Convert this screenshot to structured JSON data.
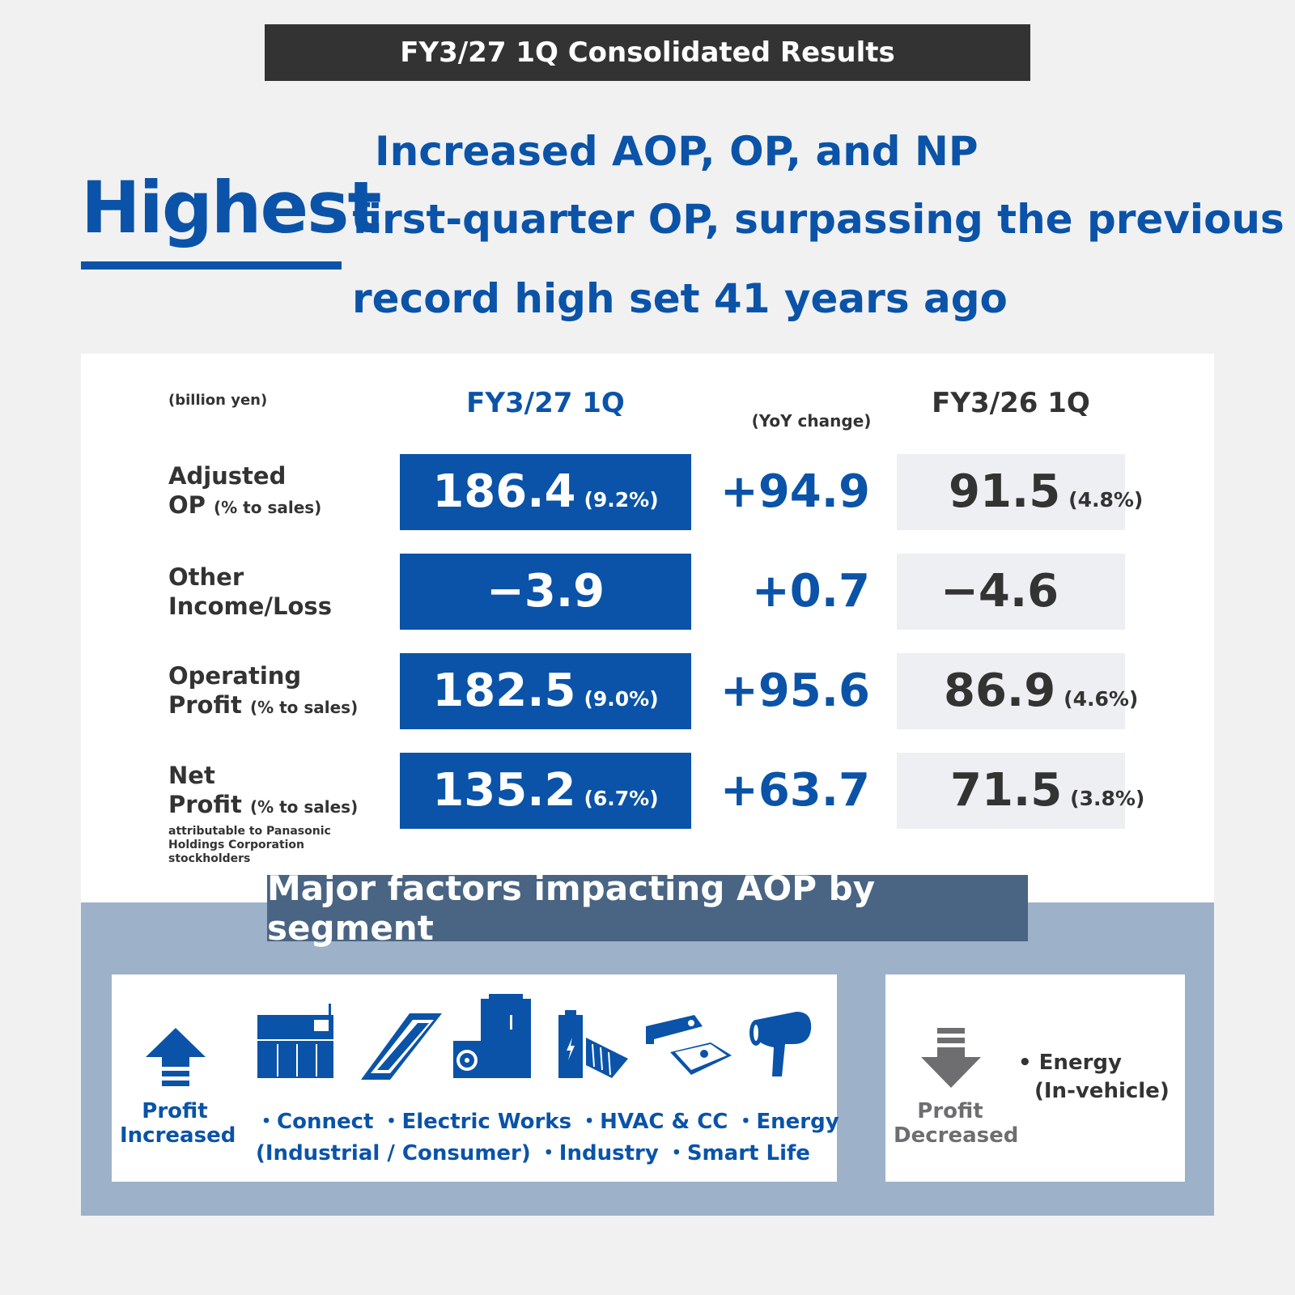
{
  "banner": "FY3/27 1Q Consolidated Results",
  "headline": {
    "word": "Highest",
    "line1": "Increased AOP, OP, and NP",
    "line2": "first-quarter OP, surpassing the previous",
    "line3": "record high set 41 years ago"
  },
  "table": {
    "unit": "(billion yen)",
    "col_current": "FY3/27 1Q",
    "col_yoy": "(YoY change)",
    "col_prior": "FY3/26 1Q",
    "rows": [
      {
        "label_a": "Adjusted",
        "label_b": "OP",
        "label_small": "(% to sales)",
        "note": "",
        "current": "186.4",
        "current_pct": "(9.2%)",
        "yoy": "+94.9",
        "prior": "91.5",
        "prior_pct": "(4.8%)"
      },
      {
        "label_a": "Other",
        "label_b": "Income/Loss",
        "label_small": "",
        "note": "",
        "current": "−3.9",
        "current_pct": "",
        "yoy": "+0.7",
        "prior": "−4.6",
        "prior_pct": ""
      },
      {
        "label_a": "Operating",
        "label_b": "Profit",
        "label_small": "(% to sales)",
        "note": "",
        "current": "182.5",
        "current_pct": "(9.0%)",
        "yoy": "+95.6",
        "prior": "86.9",
        "prior_pct": "(4.6%)"
      },
      {
        "label_a": "Net",
        "label_b": "Profit",
        "label_small": "(% to sales)",
        "note": "attributable to Panasonic Holdings Corporation stockholders",
        "current": "135.2",
        "current_pct": "(6.7%)",
        "yoy": "+63.7",
        "prior": "71.5",
        "prior_pct": "(3.8%)"
      }
    ]
  },
  "factors": {
    "title": "Major factors impacting AOP by segment",
    "increased": {
      "label_a": "Profit",
      "label_b": "Increased",
      "line1": "・Connect ・Electric Works ・HVAC & CC ・Energy",
      "line2": "(Industrial / Consumer) ・Industry ・Smart Life",
      "icons": [
        "up-arrow-icon",
        "machine-icon",
        "light-fixture-icon",
        "heat-pump-icon",
        "battery-icon",
        "battery-pack-icon",
        "hair-dryer-icon"
      ]
    },
    "decreased": {
      "label_a": "Profit",
      "label_b": "Decreased",
      "item_a": "• Energy",
      "item_b": "(In-vehicle)",
      "icons": [
        "down-arrow-icon"
      ]
    }
  },
  "colors": {
    "blue": "#0a53a8",
    "dark": "#333333",
    "slate": "#4a6483",
    "light_slate": "#9db1c9",
    "gray_box": "#eeeff2"
  }
}
